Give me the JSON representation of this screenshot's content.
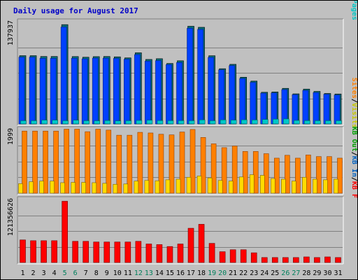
{
  "title": "Daily usage for August 2017",
  "chart_data": [
    {
      "type": "bar",
      "panel": "hits-files-pages",
      "ymax_label": "137937",
      "ymax": 137937,
      "legend": [
        {
          "text": "Pages",
          "color": "#00c8c8"
        },
        {
          "text": "/",
          "color": "#000000"
        },
        {
          "text": "Files",
          "color": "#0000ff"
        },
        {
          "text": "/",
          "color": "#000000"
        },
        {
          "text": "Hits",
          "color": "#00805c"
        }
      ],
      "series": [
        {
          "name": "Hits",
          "color": "#006c78",
          "values": [
            92100,
            92100,
            91000,
            91000,
            134000,
            90900,
            90000,
            90800,
            91000,
            90500,
            89100,
            96000,
            87000,
            88000,
            81600,
            85200,
            131800,
            130400,
            92000,
            74500,
            80400,
            63000,
            57800,
            42700,
            43100,
            48000,
            40600,
            47000,
            43900,
            41100,
            40400
          ]
        },
        {
          "name": "Files",
          "color": "#0040ff",
          "values": [
            91000,
            91000,
            89400,
            89400,
            131700,
            89500,
            88700,
            89700,
            89600,
            89300,
            88200,
            94500,
            85600,
            86400,
            81000,
            83800,
            130000,
            128500,
            90700,
            73900,
            79600,
            62200,
            57000,
            42400,
            42700,
            47200,
            40400,
            46100,
            43200,
            41000,
            39900
          ]
        },
        {
          "name": "Pages",
          "color": "#00c8c8",
          "values": [
            4300,
            4300,
            5100,
            5100,
            4300,
            5000,
            4300,
            4200,
            4500,
            4100,
            4300,
            4700,
            5000,
            4500,
            4400,
            4400,
            4300,
            5400,
            4300,
            5400,
            5100,
            5500,
            5300,
            6000,
            6400,
            6700,
            4700,
            4400,
            4300,
            4300,
            4300
          ]
        }
      ]
    },
    {
      "type": "bar",
      "panel": "visits-sites",
      "ymax_label": "1999",
      "ymax": 1999,
      "legend": [
        {
          "text": "Visits",
          "color": "#c8c800"
        },
        {
          "text": "/",
          "color": "#000000"
        },
        {
          "text": "Sites",
          "color": "#ff8000"
        }
      ],
      "series": [
        {
          "name": "Sites",
          "color": "#ff8000",
          "values": [
            1950,
            1950,
            1950,
            1950,
            2010,
            2010,
            1930,
            2010,
            1980,
            1820,
            1820,
            1910,
            1890,
            1850,
            1830,
            1920,
            2000,
            1750,
            1550,
            1430,
            1480,
            1310,
            1310,
            1240,
            1100,
            1190,
            1100,
            1200,
            1150,
            1150,
            1100
          ]
        },
        {
          "name": "Visits",
          "color": "#ffdc00",
          "values": [
            300,
            360,
            380,
            380,
            330,
            340,
            340,
            330,
            310,
            280,
            290,
            380,
            400,
            390,
            420,
            440,
            500,
            540,
            480,
            400,
            380,
            510,
            580,
            560,
            460,
            440,
            380,
            500,
            440,
            420,
            440
          ]
        }
      ]
    },
    {
      "type": "bar",
      "panel": "kbytes",
      "ymax_label": "121356626",
      "ymax": 121356626,
      "legend": [
        {
          "text": "KB F",
          "color": "#ff0000"
        },
        {
          "text": "/",
          "color": "#000000"
        },
        {
          "text": "KB In",
          "color": "#0060c0"
        },
        {
          "text": "/",
          "color": "#000000"
        },
        {
          "text": "KB Out",
          "color": "#00a000"
        }
      ],
      "series": [
        {
          "name": "KB F",
          "color": "#ff0000",
          "values": [
            43500000,
            42000000,
            42000000,
            42000000,
            118000000,
            40800000,
            40800000,
            39500000,
            39500000,
            39500000,
            39500000,
            40800000,
            35700000,
            34500000,
            30800000,
            35700000,
            66000000,
            73600000,
            36900000,
            20800000,
            24600000,
            24600000,
            18700000,
            9600000,
            9600000,
            9600000,
            9600000,
            10800000,
            9600000,
            10800000,
            9600000
          ]
        }
      ]
    }
  ],
  "days": [
    "1",
    "2",
    "3",
    "4",
    "5",
    "6",
    "7",
    "8",
    "9",
    "10",
    "11",
    "12",
    "13",
    "14",
    "15",
    "16",
    "17",
    "18",
    "19",
    "20",
    "21",
    "22",
    "23",
    "24",
    "25",
    "26",
    "27",
    "28",
    "29",
    "30",
    "31"
  ],
  "weekend_days": [
    5,
    6,
    12,
    13,
    19,
    20,
    26,
    27
  ],
  "colors": {
    "weekday": "#000000",
    "weekend": "#00805c"
  }
}
